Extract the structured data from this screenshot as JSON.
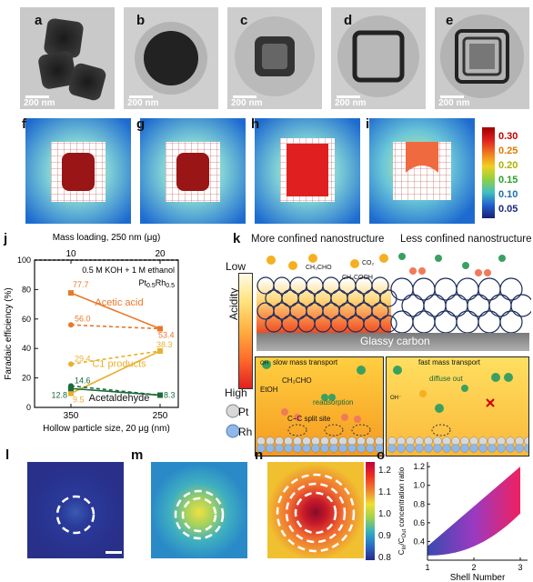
{
  "panels": {
    "a": "a",
    "b": "b",
    "c": "c",
    "d": "d",
    "e": "e",
    "f": "f",
    "g": "g",
    "h": "h",
    "i": "i",
    "j": "j",
    "k": "k",
    "l": "l",
    "m": "m",
    "n": "n",
    "o": "o"
  },
  "tem": {
    "scale_label": "200 nm"
  },
  "colorbar_top": {
    "ticks": [
      "0.30",
      "0.25",
      "0.20",
      "0.15",
      "0.10",
      "0.05"
    ],
    "tick_colors": [
      "#c00000",
      "#e07a00",
      "#b0b000",
      "#2aa02a",
      "#1a6fb0",
      "#1a2a80"
    ]
  },
  "chart_data": {
    "type": "line",
    "top_axis_label": "Mass loading, 250 nm (μg)",
    "top_ticks": [
      "10",
      "20"
    ],
    "xlabel": "Hollow particle size, 20 μg (nm)",
    "x_ticks": [
      "350",
      "250"
    ],
    "ylabel": "Faradaic efficiency (%)",
    "ylim": [
      0,
      100
    ],
    "y_ticks": [
      "0",
      "20",
      "40",
      "60",
      "80",
      "100"
    ],
    "condition": "0.5 M KOH + 1 M ethanol",
    "catalyst": "Pt",
    "catalyst_sub1": "0.5",
    "catalyst_rh": "Rh",
    "catalyst_sub2": "0.5",
    "series": [
      {
        "name": "Acetic acid",
        "color": "#e8782a",
        "style": "solid",
        "values": [
          77.7,
          53.4
        ]
      },
      {
        "name": "",
        "color": "#e8782a",
        "style": "dashed",
        "values": [
          56.0,
          53.4
        ]
      },
      {
        "name": "C1 products",
        "color": "#e8b030",
        "style": "solid",
        "values": [
          9.5,
          38.3
        ]
      },
      {
        "name": "",
        "color": "#e8b030",
        "style": "dashed",
        "values": [
          29.4,
          38.3
        ]
      },
      {
        "name": "Acetaldehyde",
        "color": "#1a6a3a",
        "style": "solid",
        "values": [
          12.8,
          8.3
        ]
      },
      {
        "name": "",
        "color": "#1a6a3a",
        "style": "dashed",
        "values": [
          14.6,
          8.3
        ]
      }
    ],
    "data_labels": [
      "77.7",
      "56.0",
      "53.4",
      "38.3",
      "29.4",
      "9.5",
      "14.6",
      "12.8",
      "8.3"
    ]
  },
  "panel_k": {
    "title_left": "More confined nanostructure",
    "title_right": "Less confined nanostructure",
    "low": "Low",
    "high": "High",
    "acidity": "Acidity",
    "glassy": "Glassy carbon",
    "mol_ch3cho": "CH₃CHO",
    "mol_ch3cooh": "CH₃COOH",
    "mol_co2": "CO₂",
    "left_box_title": "slow mass transport",
    "left_etoh": "EtOH",
    "left_ch3cho": "CH₃CHO",
    "left_readsorption": "readsorption",
    "left_split": "C−C split site",
    "right_box_title": "fast mass transport",
    "right_diffuse": "diffuse out",
    "oh": "OH⁻",
    "legend_pt": "Pt",
    "legend_rh": "Rh"
  },
  "colorbar_bottom": {
    "ticks": [
      "1.2",
      "1.1",
      "1.0",
      "0.9",
      "0.8"
    ]
  },
  "chart_o": {
    "ylabel": "C",
    "ylabel_sub1": "In",
    "ylabel_mid": "/C",
    "ylabel_sub2": "Out",
    "ylabel_tail": " concentration ratio",
    "xlabel": "Shell Number",
    "x_ticks": [
      "1",
      "2",
      "3"
    ],
    "y_ticks": [
      "0.4",
      "0.6",
      "0.8",
      "1.0",
      "1.2"
    ],
    "ylim": [
      0.2,
      1.25
    ],
    "xlim": [
      1,
      3
    ]
  }
}
